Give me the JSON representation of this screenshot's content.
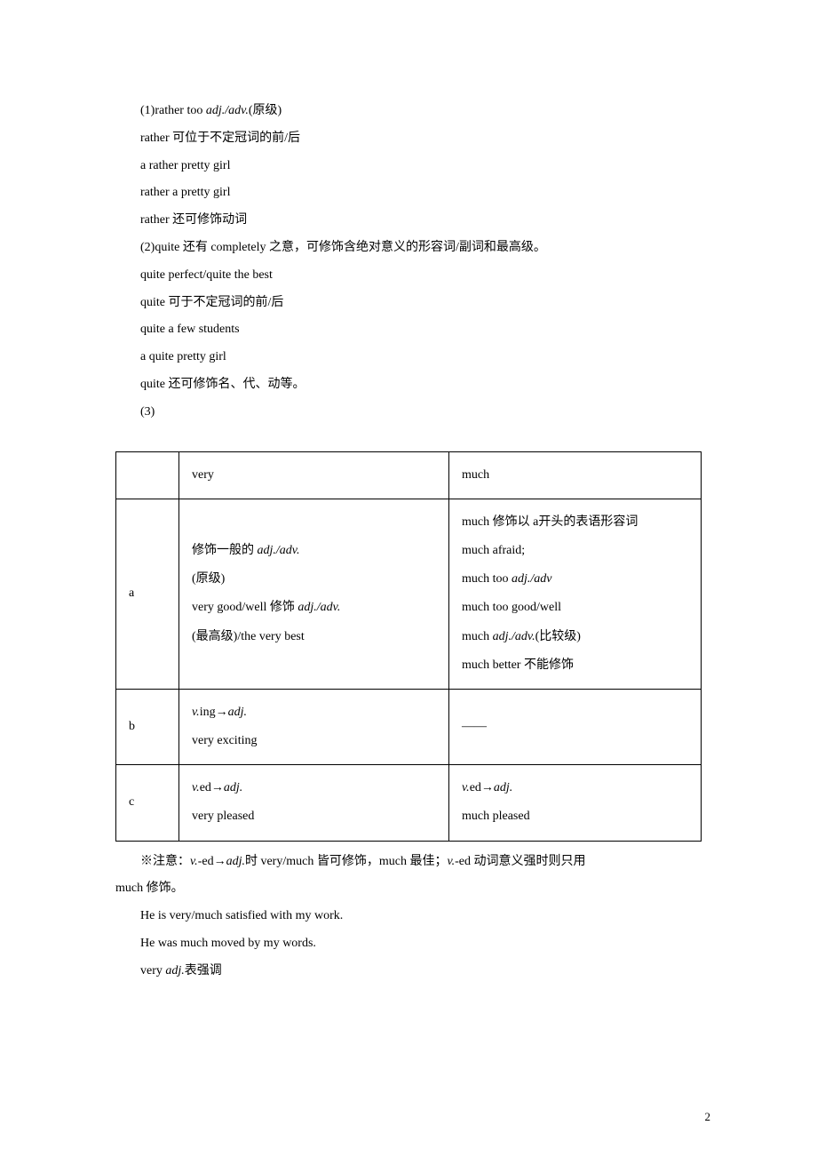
{
  "lines": {
    "l1a": "(1)rather too ",
    "l1b": "adj./adv.",
    "l1c": "(原级)",
    "l2": "rather 可位于不定冠词的前/后",
    "l3": "a rather pretty girl",
    "l4": "rather a pretty girl",
    "l5": "rather 还可修饰动词",
    "l6": "(2)quite 还有 completely 之意，可修饰含绝对意义的形容词/副词和最高级。",
    "l7": "quite perfect/quite the best",
    "l8": "quite 可于不定冠词的前/后",
    "l9": "quite a few students",
    "l10": "a quite pretty girl",
    "l11": "quite 还可修饰名、代、动等。",
    "l12": "(3)"
  },
  "table": {
    "h_blank": "",
    "h_very": "very",
    "h_much": "much",
    "rowA": {
      "label": "a",
      "very_p1a": "修饰一般的 ",
      "very_p1b": "adj./adv.",
      "very_p2": "(原级)",
      "very_p3a": "very good/well 修饰 ",
      "very_p3b": "adj./adv.",
      "very_p4": "(最高级)/the very best",
      "much_p1": "much 修饰以 a开头的表语形容词",
      "much_p2": "much afraid;",
      "much_p3a": "much too ",
      "much_p3b": "adj./adv",
      "much_p4": "much too good/well",
      "much_p5a": "much ",
      "much_p5b": "adj./adv.",
      "much_p5c": "(比较级)",
      "much_p6": "much better 不能修饰"
    },
    "rowB": {
      "label": "b",
      "very_p1a": "v.",
      "very_p1b": "ing→",
      "very_p1c": "adj.",
      "very_p2": "very exciting",
      "much": "——"
    },
    "rowC": {
      "label": "c",
      "very_p1a": "v.",
      "very_p1b": "ed→",
      "very_p1c": "adj.",
      "very_p2": "very pleased",
      "much_p1a": "v.",
      "much_p1b": "ed→",
      "much_p1c": "adj.",
      "much_p2": "much pleased"
    }
  },
  "note": {
    "n1a": "※注意：",
    "n1b": "v.",
    "n1c": "-ed→",
    "n1d": "adj.",
    "n1e": "时 very/much 皆可修饰，much 最佳；",
    "n1f": "v.",
    "n1g": "-ed 动词意义强时则只用",
    "n2": "much 修饰。",
    "n3": "He is very/much satisfied with my work.",
    "n4": "He was much moved by my words.",
    "n5a": "very ",
    "n5b": "adj.",
    "n5c": "表强调"
  },
  "pageNum": "2"
}
